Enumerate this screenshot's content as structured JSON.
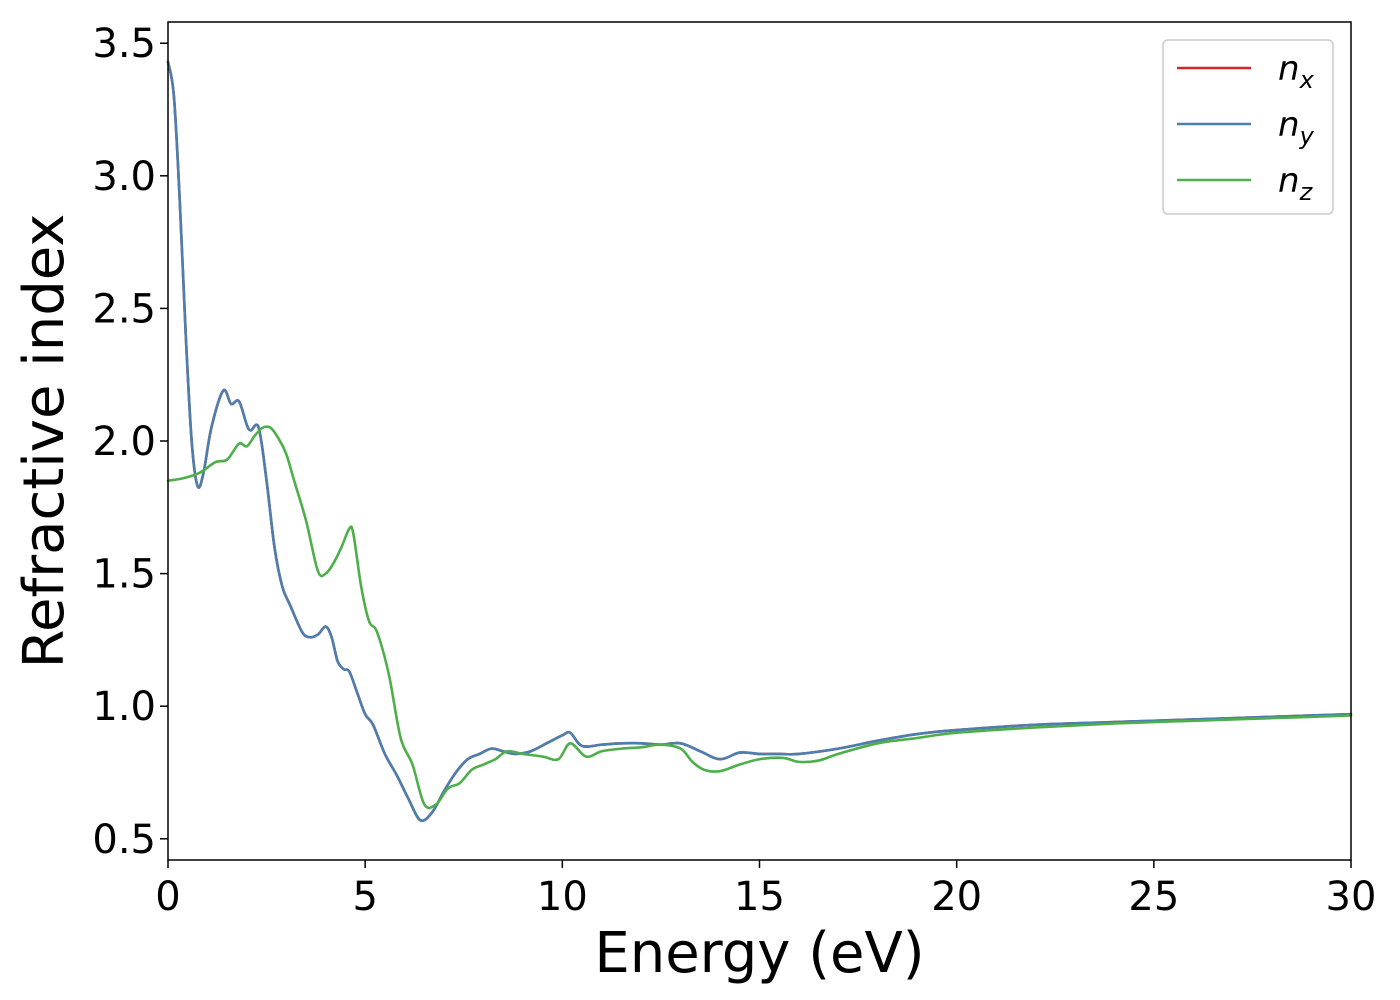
{
  "chart_data": {
    "type": "line",
    "title": "",
    "xlabel": "Energy (eV)",
    "ylabel": "Refractive index",
    "xlim": [
      0,
      30
    ],
    "ylim": [
      0.42,
      3.58
    ],
    "xticks": [
      0,
      5,
      10,
      15,
      20,
      25,
      30
    ],
    "xtick_labels": [
      "0",
      "5",
      "10",
      "15",
      "20",
      "25",
      "30"
    ],
    "yticks": [
      0.5,
      1.0,
      1.5,
      2.0,
      2.5,
      3.0,
      3.5
    ],
    "ytick_labels": [
      "0.5",
      "1.0",
      "1.5",
      "2.0",
      "2.5",
      "3.0",
      "3.5"
    ],
    "grid": false,
    "legend_position": "top-right",
    "series": [
      {
        "name": "n_x",
        "label_base": "n",
        "label_sub": "x",
        "color": "#d62728",
        "x": [
          0,
          0.15,
          0.3,
          0.45,
          0.6,
          0.75,
          0.9,
          1.1,
          1.4,
          1.6,
          1.8,
          2.0,
          2.1,
          2.3,
          2.5,
          2.7,
          2.9,
          3.1,
          3.4,
          3.6,
          3.8,
          4.0,
          4.15,
          4.3,
          4.45,
          4.6,
          4.8,
          5.0,
          5.2,
          5.5,
          5.8,
          6.1,
          6.4,
          6.7,
          7.0,
          7.3,
          7.6,
          7.9,
          8.2,
          8.5,
          8.8,
          9.2,
          9.6,
          10.0,
          10.2,
          10.5,
          11.0,
          11.5,
          12.0,
          12.5,
          13.0,
          13.5,
          14.0,
          14.5,
          15.0,
          15.5,
          16.0,
          17.0,
          18.0,
          19.0,
          20.0,
          22.0,
          24.0,
          26.0,
          28.0,
          30.0
        ],
        "values": [
          3.43,
          3.3,
          2.9,
          2.4,
          2.0,
          1.83,
          1.88,
          2.05,
          2.19,
          2.14,
          2.15,
          2.06,
          2.04,
          2.05,
          1.85,
          1.6,
          1.45,
          1.38,
          1.28,
          1.26,
          1.27,
          1.3,
          1.26,
          1.17,
          1.14,
          1.13,
          1.05,
          0.97,
          0.93,
          0.82,
          0.74,
          0.65,
          0.57,
          0.6,
          0.68,
          0.75,
          0.8,
          0.82,
          0.84,
          0.83,
          0.82,
          0.83,
          0.86,
          0.89,
          0.9,
          0.85,
          0.855,
          0.86,
          0.86,
          0.855,
          0.86,
          0.83,
          0.8,
          0.825,
          0.82,
          0.82,
          0.82,
          0.84,
          0.87,
          0.895,
          0.91,
          0.93,
          0.94,
          0.95,
          0.96,
          0.97
        ]
      },
      {
        "name": "n_y",
        "label_base": "n",
        "label_sub": "y",
        "color": "#4a7fb0",
        "x": [
          0,
          0.15,
          0.3,
          0.45,
          0.6,
          0.75,
          0.9,
          1.1,
          1.4,
          1.6,
          1.8,
          2.0,
          2.1,
          2.3,
          2.5,
          2.7,
          2.9,
          3.1,
          3.4,
          3.6,
          3.8,
          4.0,
          4.15,
          4.3,
          4.45,
          4.6,
          4.8,
          5.0,
          5.2,
          5.5,
          5.8,
          6.1,
          6.4,
          6.7,
          7.0,
          7.3,
          7.6,
          7.9,
          8.2,
          8.5,
          8.8,
          9.2,
          9.6,
          10.0,
          10.2,
          10.5,
          11.0,
          11.5,
          12.0,
          12.5,
          13.0,
          13.5,
          14.0,
          14.5,
          15.0,
          15.5,
          16.0,
          17.0,
          18.0,
          19.0,
          20.0,
          22.0,
          24.0,
          26.0,
          28.0,
          30.0
        ],
        "values": [
          3.43,
          3.3,
          2.9,
          2.4,
          2.0,
          1.83,
          1.88,
          2.05,
          2.19,
          2.14,
          2.15,
          2.06,
          2.04,
          2.05,
          1.85,
          1.6,
          1.45,
          1.38,
          1.28,
          1.26,
          1.27,
          1.3,
          1.26,
          1.17,
          1.14,
          1.13,
          1.05,
          0.97,
          0.93,
          0.82,
          0.74,
          0.65,
          0.57,
          0.6,
          0.68,
          0.75,
          0.8,
          0.82,
          0.84,
          0.83,
          0.82,
          0.83,
          0.86,
          0.89,
          0.9,
          0.85,
          0.855,
          0.86,
          0.86,
          0.855,
          0.86,
          0.83,
          0.8,
          0.825,
          0.82,
          0.82,
          0.82,
          0.84,
          0.87,
          0.895,
          0.91,
          0.93,
          0.94,
          0.95,
          0.96,
          0.97
        ]
      },
      {
        "name": "n_z",
        "label_base": "n",
        "label_sub": "z",
        "color": "#4daf4a",
        "x": [
          0,
          0.4,
          0.8,
          1.2,
          1.5,
          1.8,
          2.0,
          2.2,
          2.4,
          2.6,
          2.8,
          3.0,
          3.2,
          3.5,
          3.8,
          4.0,
          4.2,
          4.4,
          4.6,
          4.7,
          4.9,
          5.1,
          5.3,
          5.6,
          5.9,
          6.2,
          6.5,
          6.8,
          7.1,
          7.4,
          7.7,
          8.0,
          8.3,
          8.6,
          9.0,
          9.5,
          9.9,
          10.2,
          10.6,
          11.0,
          11.5,
          12.0,
          12.5,
          13.0,
          13.3,
          13.6,
          14.0,
          14.5,
          15.0,
          15.6,
          16.0,
          16.5,
          17.0,
          18.0,
          19.0,
          20.0,
          22.0,
          24.0,
          26.0,
          28.0,
          30.0
        ],
        "values": [
          1.85,
          1.86,
          1.88,
          1.92,
          1.93,
          1.99,
          1.98,
          2.02,
          2.05,
          2.05,
          2.01,
          1.95,
          1.85,
          1.7,
          1.51,
          1.5,
          1.54,
          1.6,
          1.67,
          1.65,
          1.45,
          1.32,
          1.28,
          1.12,
          0.88,
          0.78,
          0.63,
          0.63,
          0.69,
          0.71,
          0.76,
          0.78,
          0.8,
          0.83,
          0.82,
          0.81,
          0.8,
          0.86,
          0.81,
          0.83,
          0.84,
          0.845,
          0.855,
          0.84,
          0.79,
          0.76,
          0.755,
          0.78,
          0.8,
          0.805,
          0.79,
          0.795,
          0.82,
          0.86,
          0.88,
          0.9,
          0.92,
          0.935,
          0.945,
          0.955,
          0.965
        ]
      }
    ]
  }
}
